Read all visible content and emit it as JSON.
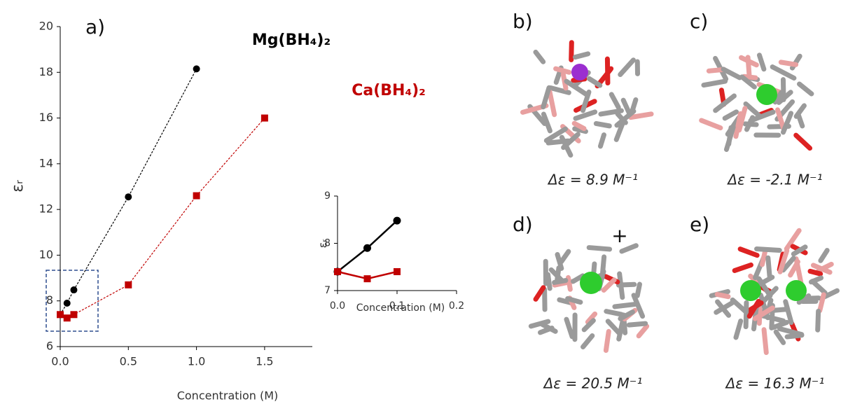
{
  "chart_data": [
    {
      "type": "line",
      "panel_label": "a)",
      "x_label": "Concentration (M)",
      "y_label": "εᵣ",
      "xlim": [
        0,
        1.85
      ],
      "ylim": [
        6,
        20
      ],
      "xticks": [
        {
          "value": 0,
          "label": "0.0"
        },
        {
          "value": 0.5,
          "label": "0.5"
        },
        {
          "value": 1,
          "label": "1.0"
        },
        {
          "value": 1.5,
          "label": "1.5"
        }
      ],
      "yticks": [
        6,
        8,
        10,
        12,
        14,
        16,
        18,
        20
      ],
      "series": [
        {
          "name": "Mg(BH₄)₂",
          "color": "#000000",
          "marker": "circle",
          "x": [
            0,
            0.05,
            0.1,
            0.5,
            1.0
          ],
          "values": [
            7.4,
            7.9,
            8.48,
            12.55,
            18.15
          ]
        },
        {
          "name": "Ca(BH₄)₂",
          "color": "#c00000",
          "marker": "square",
          "x": [
            0,
            0.05,
            0.1,
            0.5,
            1.0,
            1.5
          ],
          "values": [
            7.4,
            7.25,
            7.4,
            8.7,
            12.6,
            16.0
          ]
        }
      ]
    },
    {
      "type": "line",
      "x_label": "Concentration (M)",
      "y_label": "εᵣ",
      "xlim": [
        0,
        0.2
      ],
      "ylim": [
        7,
        9
      ],
      "xticks": [
        {
          "value": 0,
          "label": "0.0"
        },
        {
          "value": 0.1,
          "label": "0.1"
        },
        {
          "value": 0.2,
          "label": "0.2"
        }
      ],
      "yticks": [
        7,
        8,
        9
      ],
      "series": [
        {
          "color": "#000000",
          "marker": "circle",
          "x": [
            0,
            0.05,
            0.1
          ],
          "values": [
            7.4,
            7.9,
            8.48
          ]
        },
        {
          "color": "#c00000",
          "marker": "square",
          "x": [
            0,
            0.05,
            0.1
          ],
          "values": [
            7.4,
            7.25,
            7.4
          ]
        }
      ]
    }
  ],
  "panels": [
    {
      "label": "b)",
      "caption": "Δε = 8.9 M⁻¹"
    },
    {
      "label": "c)",
      "caption": "Δε = -2.1 M⁻¹"
    },
    {
      "label": "d)",
      "caption": "Δε = 20.5 M⁻¹",
      "charge": "+"
    },
    {
      "label": "e)",
      "caption": "Δε = 16.3 M⁻¹"
    }
  ]
}
